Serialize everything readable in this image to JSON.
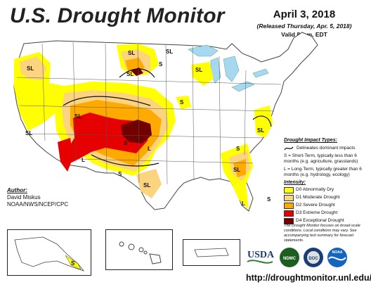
{
  "header": {
    "title": "U.S. Drought Monitor",
    "date": "April 3, 2018",
    "released": "(Released Thursday, Apr. 5, 2018)",
    "valid": "Valid 8 a.m. EDT"
  },
  "author": {
    "heading": "Author:",
    "name": "David Miskus",
    "org": "NOAA/NWS/NCEP/CPC"
  },
  "legend": {
    "impact_heading": "Drought Impact Types:",
    "impact_line": "Delineates dominant impacts",
    "s_def": "S = Short-Term, typically less than 6 months (e.g. agriculture, grasslands)",
    "l_def": "L = Long-Term, typically greater than 6 months (e.g. hydrology, ecology)",
    "intensity_heading": "Intensity:",
    "classes": [
      {
        "label": "D0 Abnormally Dry",
        "color": "#ffff00"
      },
      {
        "label": "D1 Moderate Drought",
        "color": "#fcd37f"
      },
      {
        "label": "D2 Severe Drought",
        "color": "#ffaa00"
      },
      {
        "label": "D3 Extreme Drought",
        "color": "#e60000"
      },
      {
        "label": "D4 Exceptional Drought",
        "color": "#730000"
      }
    ],
    "blurb": "The Drought Monitor focuses on broad-scale conditions. Local conditions may vary. See accompanying text summary for forecast statements."
  },
  "map_labels": {
    "sl": "SL",
    "s": "S",
    "l": "L"
  },
  "logos": [
    "USDA",
    "NDMC",
    "DOC",
    "NOAA"
  ],
  "url": "http://droughtmonitor.unl.edu/"
}
